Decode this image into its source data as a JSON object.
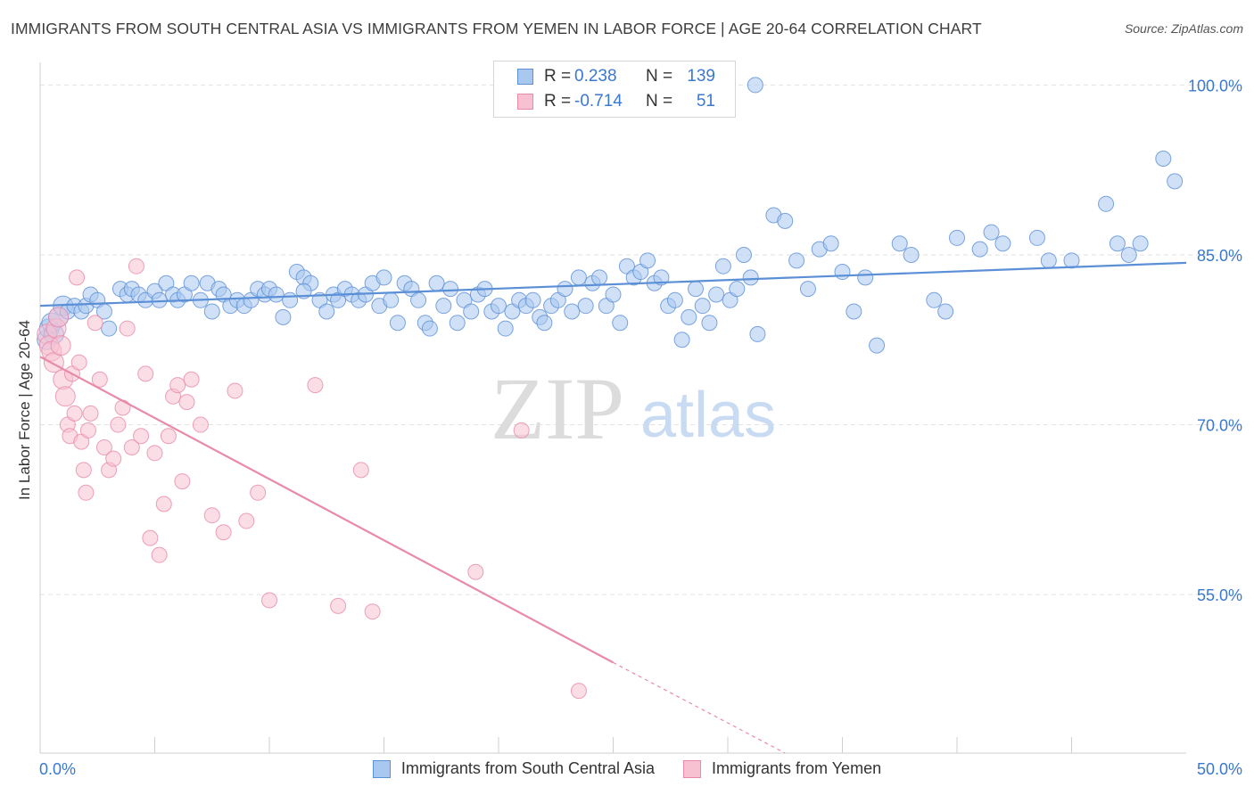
{
  "title": "IMMIGRANTS FROM SOUTH CENTRAL ASIA VS IMMIGRANTS FROM YEMEN IN LABOR FORCE | AGE 20-64 CORRELATION CHART",
  "source": "Source: ZipAtlas.com",
  "watermark": {
    "zip": "ZIP",
    "atlas": "atlas"
  },
  "legend": {
    "rows": [
      {
        "label": "R =",
        "r": "0.238",
        "n_label": "N =",
        "n": "139",
        "color": "#a9c8f0",
        "border": "#5b8fd6"
      },
      {
        "label": "R =",
        "r": "-0.714",
        "n_label": "N =",
        "n": "51",
        "color": "#f7c1d2",
        "border": "#e88aa8"
      }
    ]
  },
  "bottom_legend": [
    {
      "label": "Immigrants from South Central Asia",
      "color": "#a9c8f0",
      "border": "#5b8fd6"
    },
    {
      "label": "Immigrants from Yemen",
      "color": "#f7c1d2",
      "border": "#e88aa8"
    }
  ],
  "chart_data": {
    "type": "scatter",
    "title": "IMMIGRANTS FROM SOUTH CENTRAL ASIA VS IMMIGRANTS FROM YEMEN IN LABOR FORCE | AGE 20-64 CORRELATION CHART",
    "xlabel": "",
    "ylabel": "In Labor Force | Age 20-64",
    "xlim": [
      0,
      50
    ],
    "ylim": [
      41,
      102
    ],
    "x_tick_labels": [
      "0.0%",
      "50.0%"
    ],
    "y_ticks": [
      55,
      70,
      85,
      100
    ],
    "y_tick_labels": [
      "55.0%",
      "70.0%",
      "85.0%",
      "100.0%"
    ],
    "grid": true,
    "series": [
      {
        "name": "Immigrants from South Central Asia",
        "color": "#5b8fd6",
        "fill": "#a9c8f0",
        "trend": {
          "x": [
            0,
            50
          ],
          "y": [
            80.5,
            84.3
          ],
          "dashed_after": null
        },
        "points": [
          [
            0.3,
            77.5
          ],
          [
            0.4,
            78.5
          ],
          [
            0.5,
            79.0
          ],
          [
            0.6,
            78.0
          ],
          [
            0.8,
            79.5
          ],
          [
            1.0,
            80.5
          ],
          [
            1.2,
            80.0
          ],
          [
            1.5,
            80.5
          ],
          [
            1.8,
            80.0
          ],
          [
            2.0,
            80.5
          ],
          [
            2.2,
            81.5
          ],
          [
            2.5,
            81.0
          ],
          [
            2.8,
            80.0
          ],
          [
            3.0,
            78.5
          ],
          [
            3.5,
            82.0
          ],
          [
            3.8,
            81.5
          ],
          [
            4.0,
            82.0
          ],
          [
            4.3,
            81.5
          ],
          [
            4.6,
            81.0
          ],
          [
            5.0,
            81.8
          ],
          [
            5.2,
            81.0
          ],
          [
            5.5,
            82.5
          ],
          [
            5.8,
            81.5
          ],
          [
            6.0,
            81.0
          ],
          [
            6.3,
            81.5
          ],
          [
            6.6,
            82.5
          ],
          [
            7.0,
            81.0
          ],
          [
            7.3,
            82.5
          ],
          [
            7.5,
            80.0
          ],
          [
            7.8,
            82.0
          ],
          [
            8.0,
            81.5
          ],
          [
            8.3,
            80.5
          ],
          [
            8.6,
            81.0
          ],
          [
            8.9,
            80.5
          ],
          [
            9.2,
            81.0
          ],
          [
            9.5,
            82.0
          ],
          [
            9.8,
            81.5
          ],
          [
            10.0,
            82.0
          ],
          [
            10.3,
            81.5
          ],
          [
            10.6,
            79.5
          ],
          [
            10.9,
            81.0
          ],
          [
            11.2,
            83.5
          ],
          [
            11.5,
            83.0
          ],
          [
            11.8,
            82.5
          ],
          [
            12.2,
            81.0
          ],
          [
            12.5,
            80.0
          ],
          [
            12.8,
            81.5
          ],
          [
            13.0,
            81.0
          ],
          [
            13.3,
            82.0
          ],
          [
            13.6,
            81.5
          ],
          [
            13.9,
            81.0
          ],
          [
            14.2,
            81.5
          ],
          [
            14.5,
            82.5
          ],
          [
            14.8,
            80.5
          ],
          [
            15.0,
            83.0
          ],
          [
            15.3,
            81.0
          ],
          [
            15.6,
            79.0
          ],
          [
            15.9,
            82.5
          ],
          [
            16.2,
            82.0
          ],
          [
            16.5,
            81.0
          ],
          [
            16.8,
            79.0
          ],
          [
            17.0,
            78.5
          ],
          [
            17.3,
            82.5
          ],
          [
            17.6,
            80.5
          ],
          [
            17.9,
            82.0
          ],
          [
            18.2,
            79.0
          ],
          [
            18.5,
            81.0
          ],
          [
            18.8,
            80.0
          ],
          [
            19.1,
            81.5
          ],
          [
            19.4,
            82.0
          ],
          [
            19.7,
            80.0
          ],
          [
            20.0,
            80.5
          ],
          [
            20.3,
            78.5
          ],
          [
            20.6,
            80.0
          ],
          [
            20.9,
            81.0
          ],
          [
            21.2,
            80.5
          ],
          [
            21.5,
            81.0
          ],
          [
            21.8,
            79.5
          ],
          [
            22.0,
            79.0
          ],
          [
            22.3,
            80.5
          ],
          [
            22.6,
            81.0
          ],
          [
            22.9,
            82.0
          ],
          [
            23.2,
            80.0
          ],
          [
            23.5,
            83.0
          ],
          [
            23.8,
            80.5
          ],
          [
            24.1,
            82.5
          ],
          [
            24.4,
            83.0
          ],
          [
            24.7,
            80.5
          ],
          [
            25.0,
            81.5
          ],
          [
            25.3,
            79.0
          ],
          [
            25.6,
            84.0
          ],
          [
            25.9,
            83.0
          ],
          [
            26.2,
            83.5
          ],
          [
            26.5,
            84.5
          ],
          [
            26.8,
            82.5
          ],
          [
            27.1,
            83.0
          ],
          [
            27.4,
            80.5
          ],
          [
            27.7,
            81.0
          ],
          [
            28.0,
            77.5
          ],
          [
            28.3,
            79.5
          ],
          [
            28.6,
            82.0
          ],
          [
            28.9,
            80.5
          ],
          [
            29.2,
            79.0
          ],
          [
            29.5,
            81.5
          ],
          [
            29.8,
            84.0
          ],
          [
            30.1,
            81.0
          ],
          [
            30.4,
            82.0
          ],
          [
            30.7,
            85.0
          ],
          [
            31.0,
            83.0
          ],
          [
            31.3,
            78.0
          ],
          [
            32.0,
            88.5
          ],
          [
            32.5,
            88.0
          ],
          [
            33.0,
            84.5
          ],
          [
            33.5,
            82.0
          ],
          [
            34.0,
            85.5
          ],
          [
            34.5,
            86.0
          ],
          [
            35.0,
            83.5
          ],
          [
            35.5,
            80.0
          ],
          [
            36.0,
            83.0
          ],
          [
            36.5,
            77.0
          ],
          [
            37.5,
            86.0
          ],
          [
            38.0,
            85.0
          ],
          [
            39.0,
            81.0
          ],
          [
            39.5,
            80.0
          ],
          [
            40.0,
            86.5
          ],
          [
            41.0,
            85.5
          ],
          [
            41.5,
            87.0
          ],
          [
            42.0,
            86.0
          ],
          [
            43.5,
            86.5
          ],
          [
            44.0,
            84.5
          ],
          [
            45.0,
            84.5
          ],
          [
            46.5,
            89.5
          ],
          [
            47.0,
            86.0
          ],
          [
            47.5,
            85.0
          ],
          [
            48.0,
            86.0
          ],
          [
            49.0,
            93.5
          ],
          [
            49.5,
            91.5
          ],
          [
            31.2,
            100.0
          ],
          [
            11.5,
            81.8
          ]
        ]
      },
      {
        "name": "Immigrants from Yemen",
        "color": "#e88aa8",
        "fill": "#f7c1d2",
        "trend": {
          "x": [
            0,
            25
          ],
          "y": [
            76.0,
            49.0
          ],
          "dashed_to": [
            32.5,
            41.0
          ]
        },
        "points": [
          [
            0.3,
            78.0
          ],
          [
            0.4,
            77.0
          ],
          [
            0.5,
            76.5
          ],
          [
            0.6,
            75.5
          ],
          [
            0.7,
            78.5
          ],
          [
            0.8,
            79.5
          ],
          [
            0.9,
            77.0
          ],
          [
            1.0,
            74.0
          ],
          [
            1.1,
            72.5
          ],
          [
            1.2,
            70.0
          ],
          [
            1.3,
            69.0
          ],
          [
            1.4,
            74.5
          ],
          [
            1.5,
            71.0
          ],
          [
            1.6,
            83.0
          ],
          [
            1.7,
            75.5
          ],
          [
            1.8,
            68.5
          ],
          [
            1.9,
            66.0
          ],
          [
            2.0,
            64.0
          ],
          [
            2.1,
            69.5
          ],
          [
            2.2,
            71.0
          ],
          [
            2.4,
            79.0
          ],
          [
            2.6,
            74.0
          ],
          [
            2.8,
            68.0
          ],
          [
            3.0,
            66.0
          ],
          [
            3.2,
            67.0
          ],
          [
            3.4,
            70.0
          ],
          [
            3.6,
            71.5
          ],
          [
            3.8,
            78.5
          ],
          [
            4.0,
            68.0
          ],
          [
            4.2,
            84.0
          ],
          [
            4.4,
            69.0
          ],
          [
            4.6,
            74.5
          ],
          [
            4.8,
            60.0
          ],
          [
            5.0,
            67.5
          ],
          [
            5.2,
            58.5
          ],
          [
            5.4,
            63.0
          ],
          [
            5.6,
            69.0
          ],
          [
            5.8,
            72.5
          ],
          [
            6.0,
            73.5
          ],
          [
            6.2,
            65.0
          ],
          [
            6.4,
            72.0
          ],
          [
            6.6,
            74.0
          ],
          [
            7.0,
            70.0
          ],
          [
            7.5,
            62.0
          ],
          [
            8.0,
            60.5
          ],
          [
            8.5,
            73.0
          ],
          [
            9.0,
            61.5
          ],
          [
            9.5,
            64.0
          ],
          [
            10.0,
            54.5
          ],
          [
            12.0,
            73.5
          ],
          [
            13.0,
            54.0
          ],
          [
            14.0,
            66.0
          ],
          [
            14.5,
            53.5
          ],
          [
            19.0,
            57.0
          ],
          [
            21.0,
            69.5
          ],
          [
            23.5,
            46.5
          ]
        ]
      }
    ]
  }
}
